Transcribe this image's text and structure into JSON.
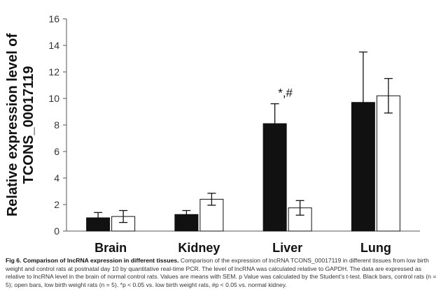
{
  "chart_data": {
    "type": "bar",
    "ylabel_lines": [
      "Relative expression level of",
      "TCONS_00017119"
    ],
    "xlabel": "",
    "categories": [
      "Brain",
      "Kidney",
      "Liver",
      "Lung"
    ],
    "ylim": [
      0,
      16
    ],
    "yticks": [
      0,
      2,
      4,
      6,
      8,
      10,
      12,
      14,
      16
    ],
    "series": [
      {
        "fill": "black",
        "values": [
          1.0,
          1.25,
          8.1,
          9.7
        ],
        "errors": [
          0.4,
          0.3,
          1.5,
          3.8
        ]
      },
      {
        "fill": "white",
        "values": [
          1.1,
          2.4,
          1.75,
          10.2
        ],
        "errors": [
          0.45,
          0.45,
          0.55,
          1.3
        ]
      }
    ],
    "annotations": [
      {
        "category": "Liver",
        "text": "*,#"
      }
    ],
    "grid": false,
    "legend": "none"
  },
  "caption": {
    "title": "Fig 6. Comparison of lncRNA expression in different tissues.",
    "body": " Comparison of the expression of lncRNA TCONS_00017119 in different tissues from low birth weight and control rats at postnatal day 10 by quantitative real-time PCR. The level of lncRNA was calculated relative to GAPDH. The data are expressed as relative to lncRNA level in the brain of normal control rats. Values are means with SEM. p Value was calculated by the Student's t-test. Black bars, control rats (n = 5); open bars, low birth weight rats (n = 5). *p < 0.05 vs. low birth weight rats, #p < 0.05 vs. normal kidney."
  }
}
